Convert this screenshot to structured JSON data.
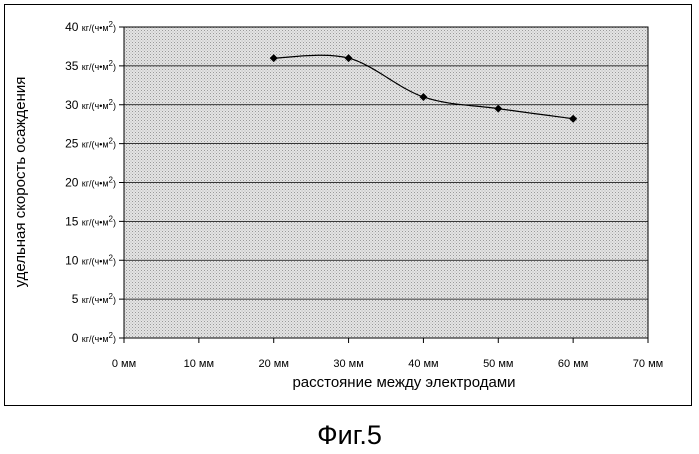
{
  "chart_data": {
    "type": "line",
    "title": "",
    "xlabel": "расстояние между электродами",
    "ylabel": "удельная скорость осаждения",
    "x_unit": "мм",
    "y_unit": "кг/(ч•м",
    "y_unit_sup": "2",
    "y_unit_close": ")",
    "xlim": [
      0,
      70
    ],
    "ylim": [
      0,
      40
    ],
    "x_ticks": [
      0,
      10,
      20,
      30,
      40,
      50,
      60,
      70
    ],
    "y_ticks": [
      0,
      5,
      10,
      15,
      20,
      25,
      30,
      35,
      40
    ],
    "grid": true,
    "series": [
      {
        "name": "",
        "x": [
          20,
          30,
          40,
          50,
          60
        ],
        "y": [
          36,
          36,
          31,
          29.5,
          28.2
        ]
      }
    ]
  },
  "caption": "Фиг.5"
}
